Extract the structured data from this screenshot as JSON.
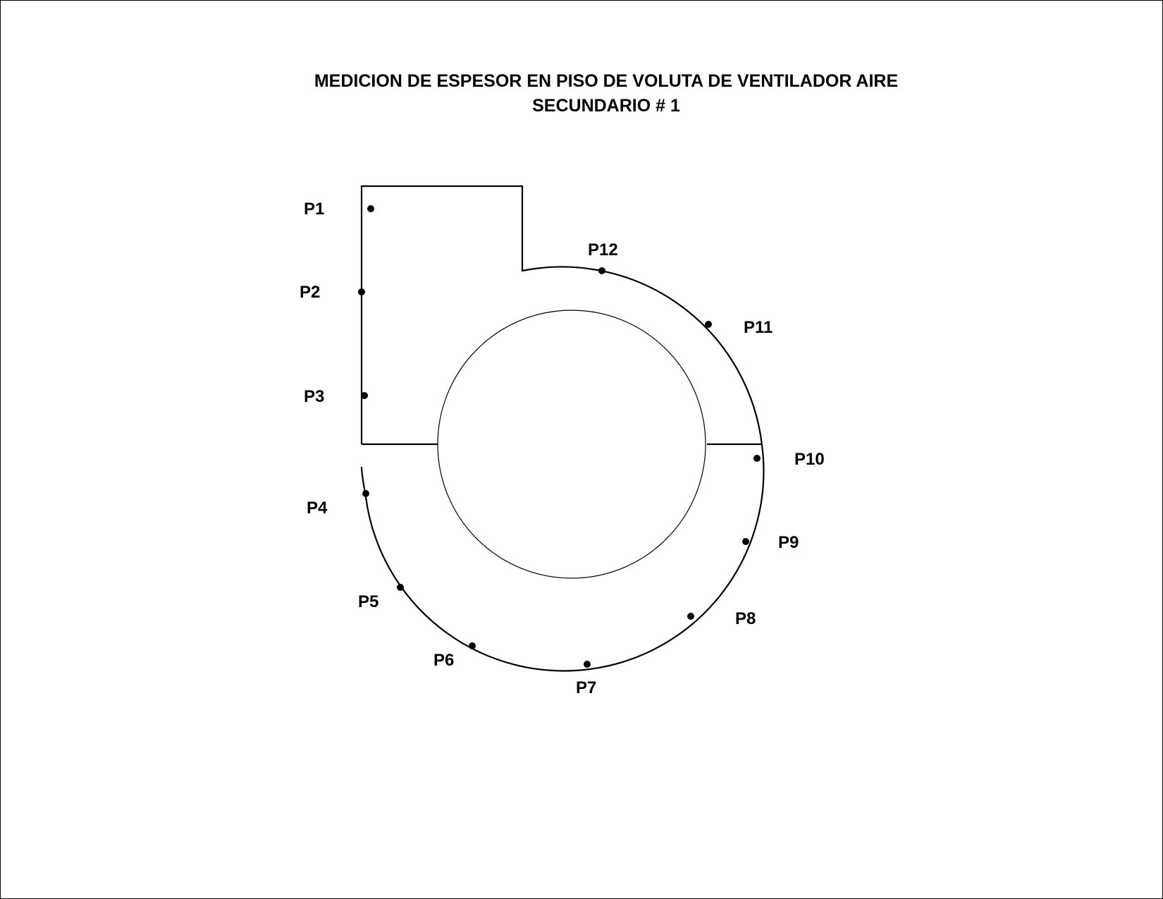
{
  "title": {
    "line1": "MEDICION DE ESPESOR EN PISO DE VOLUTA DE VENTILADOR AIRE",
    "line2": "SECUNDARIO # 1"
  },
  "points": [
    {
      "id": "p1",
      "label": "P1"
    },
    {
      "id": "p2",
      "label": "P2"
    },
    {
      "id": "p3",
      "label": "P3"
    },
    {
      "id": "p4",
      "label": "P4"
    },
    {
      "id": "p5",
      "label": "P5"
    },
    {
      "id": "p6",
      "label": "P6"
    },
    {
      "id": "p7",
      "label": "P7"
    },
    {
      "id": "p8",
      "label": "P8"
    },
    {
      "id": "p9",
      "label": "P9"
    },
    {
      "id": "p10",
      "label": "P10"
    },
    {
      "id": "p11",
      "label": "P11"
    },
    {
      "id": "p12",
      "label": "P12"
    }
  ],
  "colors": {
    "stroke": "#000000",
    "background": "#ffffff"
  }
}
